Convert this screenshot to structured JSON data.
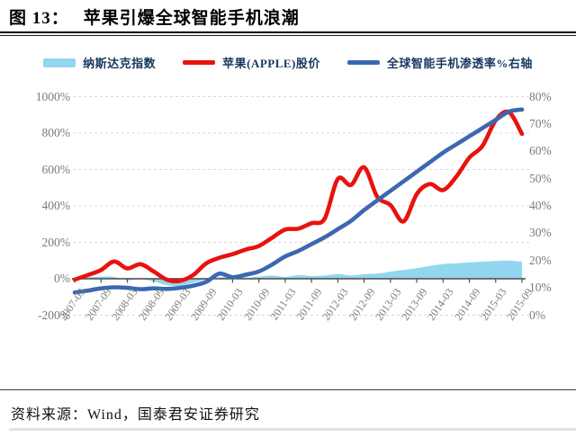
{
  "header": {
    "figure_label": "图 13：",
    "title": "苹果引爆全球智能手机浪潮"
  },
  "legend": [
    {
      "label": "纳斯达克指数",
      "color": "#92d6ef",
      "swatch": "area"
    },
    {
      "label": "苹果(APPLE)股价",
      "color": "#e8120e",
      "swatch": "line"
    },
    {
      "label": "全球智能手机渗透率%右轴",
      "color": "#3c68b0",
      "swatch": "line"
    }
  ],
  "footer": {
    "source": "资料来源：Wind，国泰君安证券研究"
  },
  "colors": {
    "grid": "#d9d9d9",
    "axis": "#4a4a4a",
    "axis_text": "#7c7c74",
    "legend_text": "#17375e"
  },
  "chart_data": {
    "type": "line",
    "title": "苹果引爆全球智能手机浪潮",
    "legend_position": "top",
    "grid": "horizontal-dashed",
    "x": [
      "2007-03",
      "2007-06",
      "2007-09",
      "2007-12",
      "2008-03",
      "2008-06",
      "2008-09",
      "2008-12",
      "2009-03",
      "2009-06",
      "2009-09",
      "2009-12",
      "2010-03",
      "2010-06",
      "2010-09",
      "2010-12",
      "2011-03",
      "2011-06",
      "2011-09",
      "2011-12",
      "2012-03",
      "2012-06",
      "2012-09",
      "2012-12",
      "2013-03",
      "2013-06",
      "2013-09",
      "2013-12",
      "2014-03",
      "2014-06",
      "2014-09",
      "2014-12",
      "2015-03",
      "2015-06",
      "2015-09"
    ],
    "x_tick_labels": [
      "2007-03",
      "2007-09",
      "2008-03",
      "2008-09",
      "2009-03",
      "2009-09",
      "2010-03",
      "2010-09",
      "2011-03",
      "2011-09",
      "2012-03",
      "2012-09",
      "2013-03",
      "2013-09",
      "2014-03",
      "2014-09",
      "2015-03",
      "2015-09"
    ],
    "left_axis": {
      "min": -200,
      "max": 1000,
      "ticks": [
        1000,
        800,
        600,
        400,
        200,
        0,
        -200
      ],
      "format": "%"
    },
    "right_axis": {
      "min": 0,
      "max": 80,
      "ticks": [
        80,
        70,
        60,
        50,
        40,
        30,
        20,
        10,
        0
      ],
      "format": "%"
    },
    "series": [
      {
        "name": "纳斯达克指数",
        "kind": "area",
        "axis": "left",
        "color": "#92d6ef",
        "values": [
          0,
          8,
          12,
          10,
          -8,
          -3,
          -15,
          -35,
          -40,
          -22,
          -5,
          8,
          14,
          6,
          12,
          18,
          10,
          20,
          15,
          18,
          26,
          18,
          25,
          28,
          39,
          48,
          58,
          70,
          80,
          85,
          90,
          94,
          98,
          100,
          93
        ]
      },
      {
        "name": "苹果(APPLE)股价",
        "kind": "line",
        "axis": "left",
        "color": "#e8120e",
        "values": [
          -5,
          20,
          48,
          95,
          57,
          80,
          40,
          -5,
          -12,
          20,
          85,
          115,
          135,
          160,
          180,
          225,
          270,
          275,
          305,
          330,
          548,
          515,
          612,
          450,
          405,
          315,
          465,
          520,
          487,
          560,
          665,
          730,
          870,
          915,
          795
        ]
      },
      {
        "name": "全球智能手机渗透率%右轴",
        "kind": "line",
        "axis": "right",
        "color": "#3c68b0",
        "values": [
          8.3,
          9,
          9.8,
          10.2,
          10,
          9.5,
          9.8,
          9.6,
          10,
          10.8,
          12.2,
          15.2,
          13.9,
          14.8,
          16,
          18.5,
          21.5,
          23.5,
          26,
          28.5,
          31.5,
          34.5,
          38.5,
          42,
          45.5,
          49,
          52.5,
          56,
          59.5,
          62.5,
          65.5,
          68.5,
          71.5,
          74.5,
          75.3
        ]
      }
    ]
  }
}
